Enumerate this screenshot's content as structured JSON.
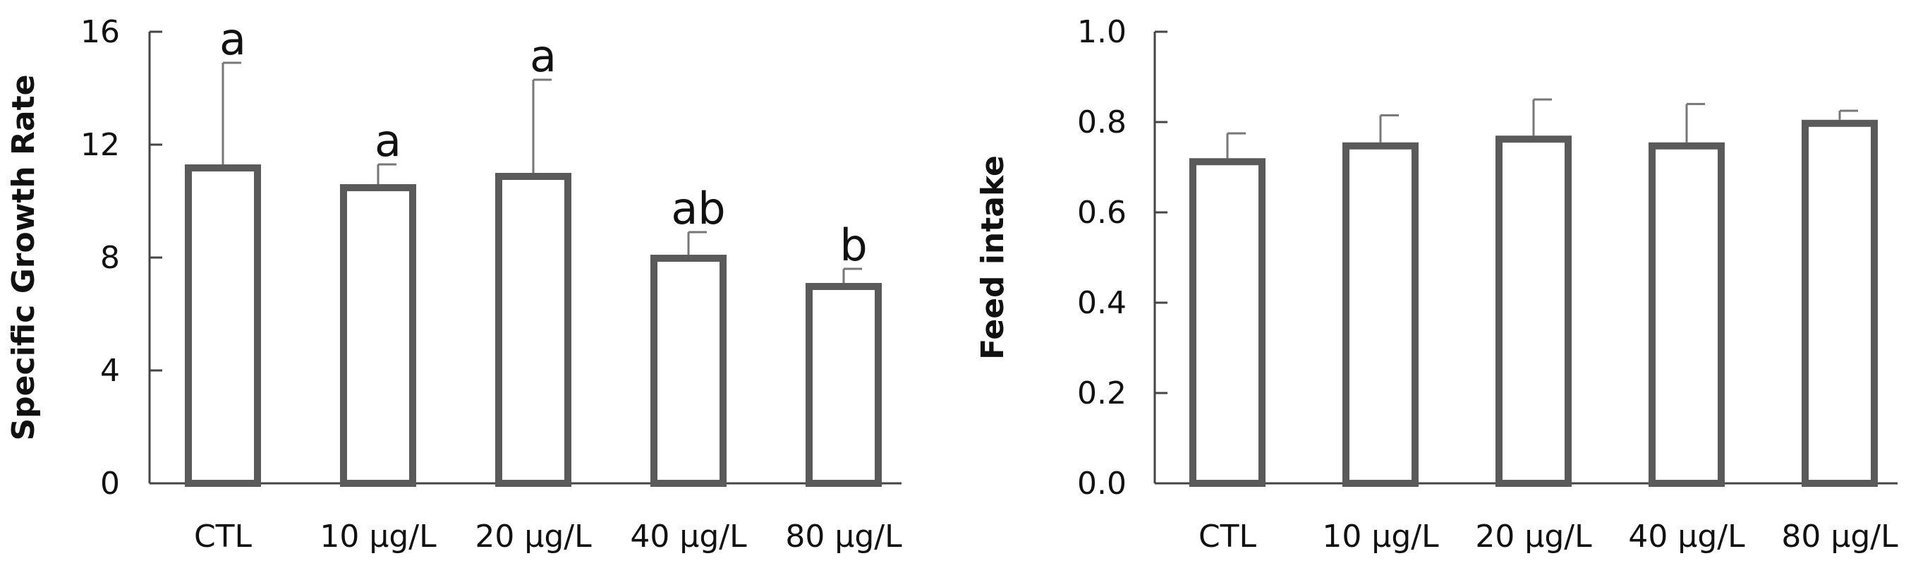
{
  "colors": {
    "bar_stroke": "#5a5a5a",
    "bar_fill": "#ffffff",
    "axis": "#444444",
    "error": "#777777",
    "text": "#111111"
  },
  "chart_data": [
    {
      "type": "bar",
      "categories": [
        "CTL",
        "10 μg/L",
        "20 μg/L",
        "40 μg/L",
        "80 μg/L"
      ],
      "values": [
        11.3,
        10.6,
        11.0,
        8.1,
        7.1
      ],
      "errors": [
        3.6,
        0.7,
        3.3,
        0.8,
        0.5
      ],
      "significance": [
        "a",
        "a",
        "a",
        "ab",
        "b"
      ],
      "title": "",
      "xlabel": "",
      "ylabel": "Specific Growth Rate",
      "ylim": [
        0,
        16
      ],
      "yticks": [
        "0",
        "4",
        "8",
        "12",
        "16"
      ],
      "ytick_values": [
        0,
        4,
        8,
        12,
        16
      ],
      "grid": false
    },
    {
      "type": "bar",
      "categories": [
        "CTL",
        "10 μg/L",
        "20 μg/L",
        "40 μg/L",
        "80 μg/L"
      ],
      "values": [
        0.72,
        0.755,
        0.77,
        0.755,
        0.805
      ],
      "errors": [
        0.055,
        0.06,
        0.08,
        0.085,
        0.02
      ],
      "significance": [],
      "title": "",
      "xlabel": "",
      "ylabel": "Feed intake",
      "ylim": [
        0,
        1.0
      ],
      "yticks": [
        "0.0",
        "0.2",
        "0.4",
        "0.6",
        "0.8",
        "1.0"
      ],
      "ytick_values": [
        0,
        0.2,
        0.4,
        0.6,
        0.8,
        1.0
      ],
      "grid": false
    }
  ]
}
